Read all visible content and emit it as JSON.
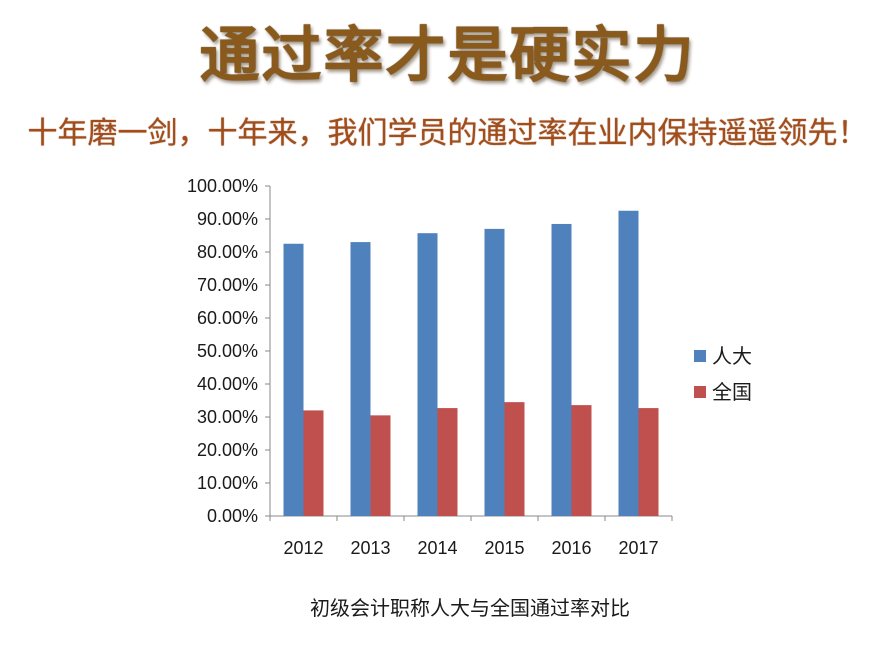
{
  "header": {
    "title": "通过率才是硬实力",
    "subtitle": "十年磨一剑，十年来，我们学员的通过率在业内保持遥遥领先！"
  },
  "colors": {
    "title": "#8a5a1c",
    "subtitle": "#a14e1c",
    "series_renda": "#4f81bd",
    "series_quanguo": "#c0504d"
  },
  "chart_data": {
    "type": "bar",
    "title": "",
    "caption": "初级会计职称人大与全国通过率对比",
    "xlabel": "",
    "ylabel": "",
    "categories": [
      "2012",
      "2013",
      "2014",
      "2015",
      "2016",
      "2017"
    ],
    "series": [
      {
        "name": "人大",
        "color": "#4f81bd",
        "values": [
          82.5,
          83.0,
          85.7,
          87.0,
          88.5,
          92.5
        ]
      },
      {
        "name": "全国",
        "color": "#c0504d",
        "values": [
          32.0,
          30.5,
          32.7,
          34.5,
          33.6,
          32.7
        ]
      }
    ],
    "ylim": [
      0,
      100
    ],
    "y_ticks": [
      "0.00%",
      "10.00%",
      "20.00%",
      "30.00%",
      "40.00%",
      "50.00%",
      "60.00%",
      "70.00%",
      "80.00%",
      "90.00%",
      "100.00%"
    ],
    "grid": false,
    "legend_position": "right"
  }
}
